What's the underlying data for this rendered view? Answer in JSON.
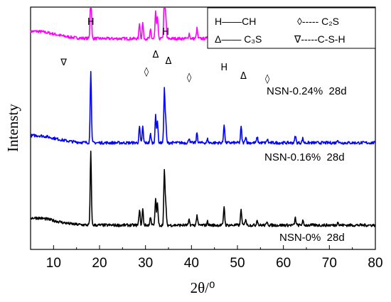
{
  "chart_data": {
    "type": "line",
    "xlabel": "2θ/⁰",
    "ylabel": "Intensty",
    "xlim": [
      5,
      80
    ],
    "xticks": [
      10,
      20,
      30,
      40,
      50,
      60,
      70,
      80
    ],
    "grid": false,
    "legend_position": "top-right",
    "legend": [
      {
        "symbol": "H",
        "text": "——CH"
      },
      {
        "symbol": "◊",
        "text": "----- C₂S"
      },
      {
        "symbol": "Δ",
        "text": "—— C₃S"
      },
      {
        "symbol": "∇",
        "text": "-----C-S-H"
      }
    ],
    "series": [
      {
        "name": "NSN-0.24%  28d",
        "color": "#ff00ff",
        "baseline": 0.87
      },
      {
        "name": "NSN-0.16%  28d",
        "color": "#0000ff",
        "baseline": 0.44
      },
      {
        "name": "NSN-0%  28d",
        "color": "#000000",
        "baseline": 0.1
      }
    ],
    "peaks": [
      {
        "x": 18.1,
        "h": 1.0
      },
      {
        "x": 28.7,
        "h": 0.22
      },
      {
        "x": 29.4,
        "h": 0.22
      },
      {
        "x": 31.1,
        "h": 0.12
      },
      {
        "x": 32.2,
        "h": 0.37
      },
      {
        "x": 32.6,
        "h": 0.3
      },
      {
        "x": 34.1,
        "h": 0.73
      },
      {
        "x": 34.4,
        "h": 0.3
      },
      {
        "x": 39.5,
        "h": 0.07
      },
      {
        "x": 41.2,
        "h": 0.14
      },
      {
        "x": 43.5,
        "h": 0.05
      },
      {
        "x": 47.1,
        "h": 0.26
      },
      {
        "x": 50.8,
        "h": 0.22
      },
      {
        "x": 51.8,
        "h": 0.09
      },
      {
        "x": 54.3,
        "h": 0.08
      },
      {
        "x": 56.5,
        "h": 0.05
      },
      {
        "x": 62.6,
        "h": 0.1
      },
      {
        "x": 64.2,
        "h": 0.06
      },
      {
        "x": 71.8,
        "h": 0.05
      }
    ],
    "annotations": [
      {
        "text": "H",
        "x": 18.1
      },
      {
        "text": "H",
        "x": 34.4
      },
      {
        "text": "H",
        "x": 47.1
      },
      {
        "text": "Δ",
        "x": 32.2
      },
      {
        "text": "Δ",
        "x": 35.0
      },
      {
        "text": "Δ",
        "x": 51.3
      },
      {
        "text": "◊",
        "x": 30.2
      },
      {
        "text": "◊",
        "x": 39.5
      },
      {
        "text": "◊",
        "x": 56.5
      },
      {
        "text": "∇",
        "x": 12.2
      }
    ]
  }
}
